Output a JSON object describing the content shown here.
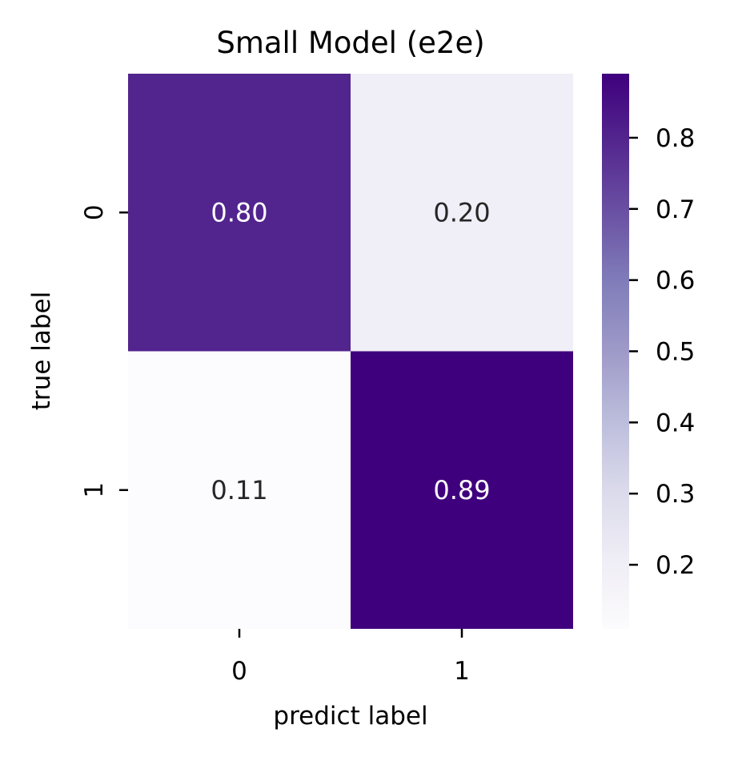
{
  "chart_data": {
    "type": "heatmap",
    "title": "Small Model (e2e)",
    "xlabel": "predict label",
    "ylabel": "true label",
    "x_categories": [
      "0",
      "1"
    ],
    "y_categories": [
      "0",
      "1"
    ],
    "values": [
      [
        0.8,
        0.2
      ],
      [
        0.11,
        0.89
      ]
    ],
    "value_labels": [
      [
        "0.80",
        "0.20"
      ],
      [
        "0.11",
        "0.89"
      ]
    ],
    "colormap": "Purples",
    "vmin": 0.11,
    "vmax": 0.89,
    "colorbar_ticks": [
      "0.2",
      "0.3",
      "0.4",
      "0.5",
      "0.6",
      "0.7",
      "0.8"
    ],
    "colorbar_tick_values": [
      0.2,
      0.3,
      0.4,
      0.5,
      0.6,
      0.7,
      0.8
    ],
    "grid": false,
    "legend": "colorbar-right"
  }
}
